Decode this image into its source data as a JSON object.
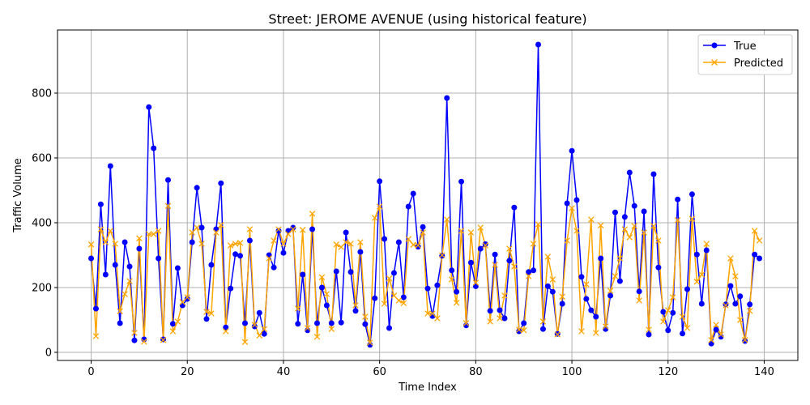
{
  "chart_data": {
    "type": "line",
    "title": "Street: JEROME AVENUE (using historical feature)",
    "xlabel": "Time Index",
    "ylabel": "Traffic Volume",
    "xlim": [
      -7,
      147
    ],
    "ylim": [
      -25,
      995
    ],
    "xticks": [
      0,
      20,
      40,
      60,
      80,
      100,
      120,
      140
    ],
    "yticks": [
      0,
      200,
      400,
      600,
      800
    ],
    "grid": true,
    "legend_position": "top-right",
    "colors": {
      "true": "#0000ff",
      "predicted": "#ffa500"
    },
    "series": [
      {
        "name": "True",
        "marker": "circle",
        "values": [
          290,
          135,
          457,
          240,
          575,
          270,
          90,
          340,
          265,
          37,
          320,
          40,
          757,
          630,
          290,
          40,
          532,
          88,
          260,
          145,
          165,
          340,
          508,
          385,
          103,
          270,
          380,
          522,
          77,
          197,
          303,
          298,
          90,
          345,
          80,
          122,
          57,
          300,
          262,
          375,
          307,
          375,
          385,
          88,
          240,
          68,
          380,
          90,
          200,
          145,
          90,
          250,
          92,
          370,
          248,
          128,
          310,
          87,
          23,
          167,
          528,
          350,
          75,
          245,
          340,
          170,
          450,
          490,
          326,
          387,
          197,
          112,
          207,
          298,
          785,
          253,
          187,
          527,
          83,
          277,
          204,
          320,
          334,
          128,
          302,
          130,
          105,
          283,
          447,
          65,
          90,
          248,
          253,
          950,
          72,
          204,
          187,
          57,
          150,
          460,
          622,
          470,
          233,
          165,
          130,
          110,
          290,
          72,
          175,
          432,
          220,
          418,
          555,
          452,
          188,
          435,
          55,
          550,
          262,
          125,
          68,
          122,
          472,
          58,
          195,
          488,
          302,
          150,
          315,
          27,
          70,
          48,
          148,
          205,
          150,
          173,
          35,
          148,
          302,
          290
        ]
      },
      {
        "name": "Predicted",
        "marker": "x",
        "values": [
          333,
          50,
          380,
          340,
          375,
          335,
          127,
          180,
          220,
          60,
          352,
          33,
          365,
          365,
          375,
          38,
          452,
          65,
          95,
          155,
          170,
          370,
          385,
          335,
          125,
          120,
          370,
          393,
          65,
          330,
          335,
          338,
          32,
          380,
          85,
          52,
          72,
          290,
          345,
          380,
          335,
          365,
          380,
          135,
          378,
          75,
          428,
          48,
          232,
          180,
          72,
          333,
          325,
          340,
          335,
          145,
          340,
          110,
          30,
          415,
          450,
          150,
          228,
          175,
          160,
          152,
          350,
          332,
          330,
          370,
          120,
          120,
          105,
          300,
          410,
          225,
          153,
          375,
          90,
          370,
          215,
          385,
          330,
          95,
          270,
          105,
          175,
          320,
          265,
          70,
          68,
          235,
          335,
          395,
          95,
          295,
          225,
          55,
          172,
          345,
          445,
          375,
          65,
          210,
          410,
          60,
          392,
          80,
          190,
          235,
          290,
          380,
          355,
          390,
          160,
          370,
          70,
          390,
          345,
          95,
          130,
          170,
          408,
          110,
          75,
          412,
          218,
          240,
          335,
          38,
          85,
          55,
          145,
          290,
          235,
          100,
          38,
          128,
          375,
          345
        ]
      }
    ]
  }
}
